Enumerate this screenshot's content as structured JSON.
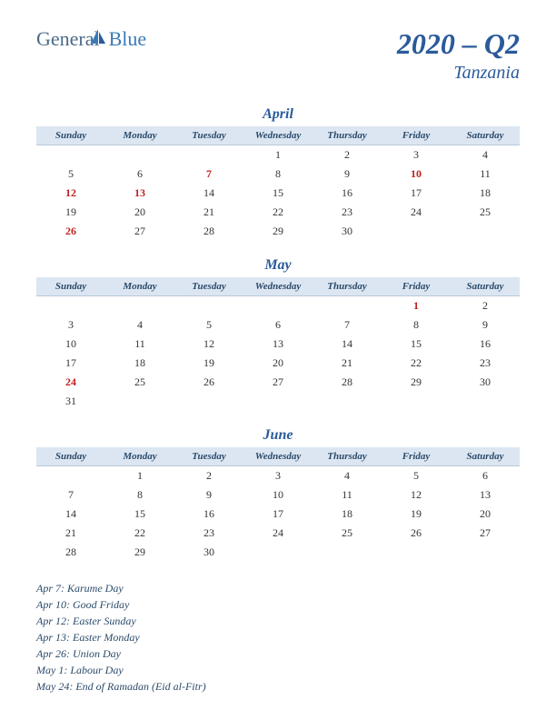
{
  "logo": {
    "general": "General",
    "blue": "Blue"
  },
  "period": "2020 – Q2",
  "country": "Tanzania",
  "dayHeaders": [
    "Sunday",
    "Monday",
    "Tuesday",
    "Wednesday",
    "Thursday",
    "Friday",
    "Saturday"
  ],
  "months": [
    {
      "name": "April",
      "weeks": [
        [
          "",
          "",
          "",
          "1",
          "2",
          "3",
          "4"
        ],
        [
          "5",
          "6",
          "7",
          "8",
          "9",
          "10",
          "11"
        ],
        [
          "12",
          "13",
          "14",
          "15",
          "16",
          "17",
          "18"
        ],
        [
          "19",
          "20",
          "21",
          "22",
          "23",
          "24",
          "25"
        ],
        [
          "26",
          "27",
          "28",
          "29",
          "30",
          "",
          ""
        ]
      ],
      "holidays": [
        "7",
        "10",
        "12",
        "13",
        "26"
      ]
    },
    {
      "name": "May",
      "weeks": [
        [
          "",
          "",
          "",
          "",
          "",
          "1",
          "2"
        ],
        [
          "3",
          "4",
          "5",
          "6",
          "7",
          "8",
          "9"
        ],
        [
          "10",
          "11",
          "12",
          "13",
          "14",
          "15",
          "16"
        ],
        [
          "17",
          "18",
          "19",
          "20",
          "21",
          "22",
          "23"
        ],
        [
          "24",
          "25",
          "26",
          "27",
          "28",
          "29",
          "30"
        ],
        [
          "31",
          "",
          "",
          "",
          "",
          "",
          ""
        ]
      ],
      "holidays": [
        "1",
        "24"
      ]
    },
    {
      "name": "June",
      "weeks": [
        [
          "",
          "1",
          "2",
          "3",
          "4",
          "5",
          "6"
        ],
        [
          "7",
          "8",
          "9",
          "10",
          "11",
          "12",
          "13"
        ],
        [
          "14",
          "15",
          "16",
          "17",
          "18",
          "19",
          "20"
        ],
        [
          "21",
          "22",
          "23",
          "24",
          "25",
          "26",
          "27"
        ],
        [
          "28",
          "29",
          "30",
          "",
          "",
          "",
          ""
        ]
      ],
      "holidays": []
    }
  ],
  "holidayList": [
    "Apr 7: Karume Day",
    "Apr 10: Good Friday",
    "Apr 12: Easter Sunday",
    "Apr 13: Easter Monday",
    "Apr 26: Union Day",
    "May 1: Labour Day",
    "May 24: End of Ramadan (Eid al-Fitr)"
  ],
  "colors": {
    "headerBg": "#dce6f2",
    "accent": "#2a5a9a",
    "holiday": "#c02020"
  }
}
